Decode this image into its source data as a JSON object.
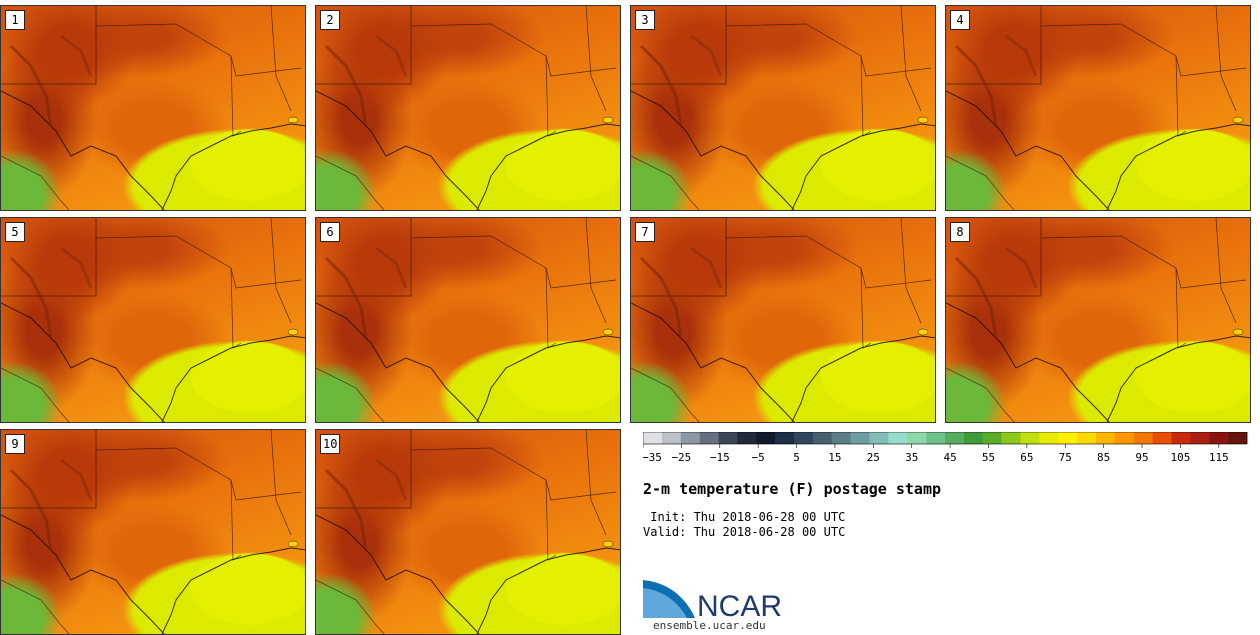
{
  "panels": [
    {
      "label": "1"
    },
    {
      "label": "2"
    },
    {
      "label": "3"
    },
    {
      "label": "4"
    },
    {
      "label": "5"
    },
    {
      "label": "6"
    },
    {
      "label": "7"
    },
    {
      "label": "8"
    },
    {
      "label": "9"
    },
    {
      "label": "10"
    }
  ],
  "colorbar": {
    "colors": [
      "#dfe1e6",
      "#bcc1c9",
      "#8d96a3",
      "#657080",
      "#3a4658",
      "#1e2a3c",
      "#0f1a2c",
      "#1c2d44",
      "#31465c",
      "#47606f",
      "#5a7e88",
      "#6e9ea3",
      "#84bcba",
      "#97dccd",
      "#8fd6a8",
      "#6cc28a",
      "#56ad60",
      "#409b3a",
      "#5aad28",
      "#8dc81c",
      "#c0de10",
      "#e8ec00",
      "#fff000",
      "#ffd800",
      "#ffb600",
      "#ff9600",
      "#f47808",
      "#e85008",
      "#c82a0c",
      "#a8200e",
      "#88160e",
      "#641408"
    ],
    "min": -35,
    "max": 120,
    "tick_labels": [
      "−35",
      "−25",
      "−15",
      "−5",
      "5",
      "15",
      "25",
      "35",
      "45",
      "55",
      "65",
      "75",
      "85",
      "95",
      "105",
      "115"
    ]
  },
  "title": "2-m temperature (F) postage stamp",
  "init_line": " Init: Thu 2018-06-28 00 UTC",
  "valid_line": "Valid: Thu 2018-06-28 00 UTC",
  "logo_text": "NCAR",
  "site": "ensemble.ucar.edu"
}
